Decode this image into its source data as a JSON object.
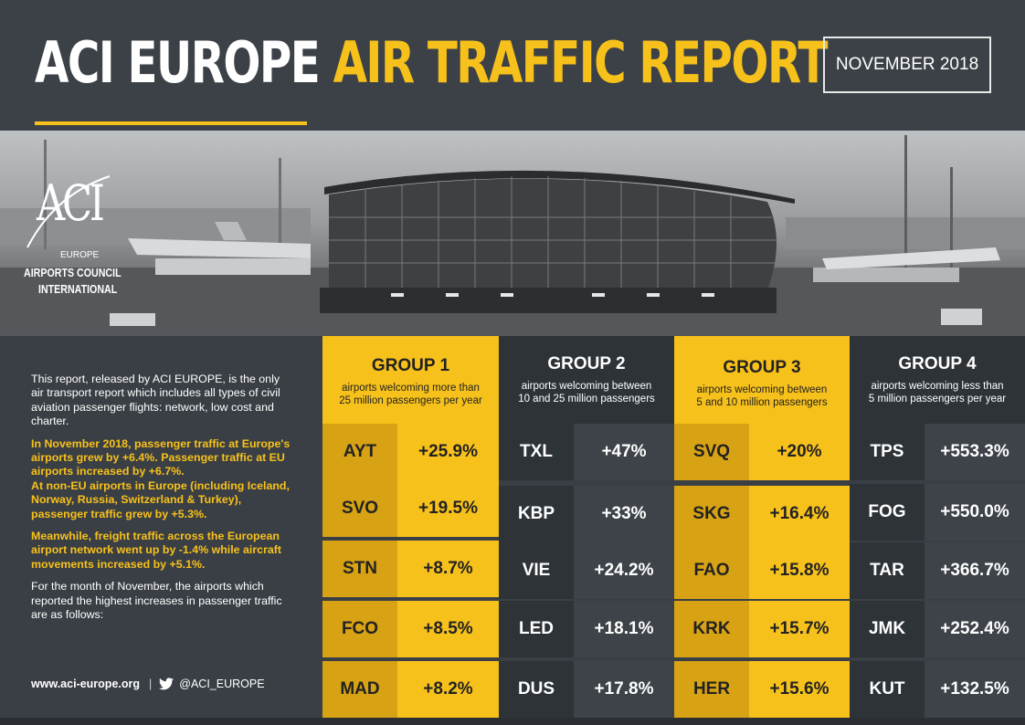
{
  "header": {
    "title_white": "ACI EUROPE",
    "title_yellow": "AIR TRAFFIC REPORT",
    "date": "NOVEMBER 2018"
  },
  "logo": {
    "mark": "ACI",
    "europe": "EUROPE",
    "line1": "AIRPORTS COUNCIL",
    "line2": "INTERNATIONAL"
  },
  "intro": {
    "p1": "This report, released by ACI EUROPE, is the only air transport report which includes all types of civil aviation passenger flights: network, low cost and charter.",
    "p2a": "In November 2018, passenger traffic at Europe's airports grew by +6.4%. Passenger traffic at EU airports increased by +6.7%.",
    "p2b": "At non-EU airports in Europe (including Iceland, Norway, Russia, Switzerland & Turkey), passenger traffic grew by +5.3%.",
    "p3": "Meanwhile, freight traffic across the European airport network went up by -1.4% while aircraft movements increased by +5.1%.",
    "p4": "For the month of November, the airports which reported the highest increases in passenger traffic are as follows:",
    "website": "www.aci-europe.org",
    "separator": "|",
    "twitter": "@ACI_EUROPE"
  },
  "groups": [
    {
      "title": "GROUP 1",
      "subtitle_l1": "airports welcoming more than",
      "subtitle_l2": "25 million passengers per year",
      "rows": [
        {
          "code": "AYT",
          "pct": "+25.9%"
        },
        {
          "code": "SVO",
          "pct": "+19.5%"
        },
        {
          "code": "STN",
          "pct": "+8.7%"
        },
        {
          "code": "FCO",
          "pct": "+8.5%"
        },
        {
          "code": "MAD",
          "pct": "+8.2%"
        }
      ]
    },
    {
      "title": "GROUP 2",
      "subtitle_l1": "airports welcoming between",
      "subtitle_l2": "10 and 25 million passengers",
      "rows": [
        {
          "code": "TXL",
          "pct": "+47%"
        },
        {
          "code": "KBP",
          "pct": "+33%"
        },
        {
          "code": "VIE",
          "pct": "+24.2%"
        },
        {
          "code": "LED",
          "pct": "+18.1%"
        },
        {
          "code": "DUS",
          "pct": "+17.8%"
        }
      ]
    },
    {
      "title": "GROUP 3",
      "subtitle_l1": "airports welcoming between",
      "subtitle_l2": "5 and 10 million passengers",
      "rows": [
        {
          "code": "SVQ",
          "pct": "+20%"
        },
        {
          "code": "SKG",
          "pct": "+16.4%"
        },
        {
          "code": "FAO",
          "pct": "+15.8%"
        },
        {
          "code": "KRK",
          "pct": "+15.7%"
        },
        {
          "code": "HER",
          "pct": "+15.6%"
        }
      ]
    },
    {
      "title": "GROUP 4",
      "subtitle_l1": "airports welcoming less than",
      "subtitle_l2": "5 million passengers per year",
      "rows": [
        {
          "code": "TPS",
          "pct": "+553.3%"
        },
        {
          "code": "FOG",
          "pct": "+550.0%"
        },
        {
          "code": "TAR",
          "pct": "+366.7%"
        },
        {
          "code": "JMK",
          "pct": "+252.4%"
        },
        {
          "code": "KUT",
          "pct": "+132.5%"
        }
      ]
    }
  ],
  "colors": {
    "accent": "#f7c11b",
    "dark": "#2e3338",
    "background": "#3a3f45"
  }
}
